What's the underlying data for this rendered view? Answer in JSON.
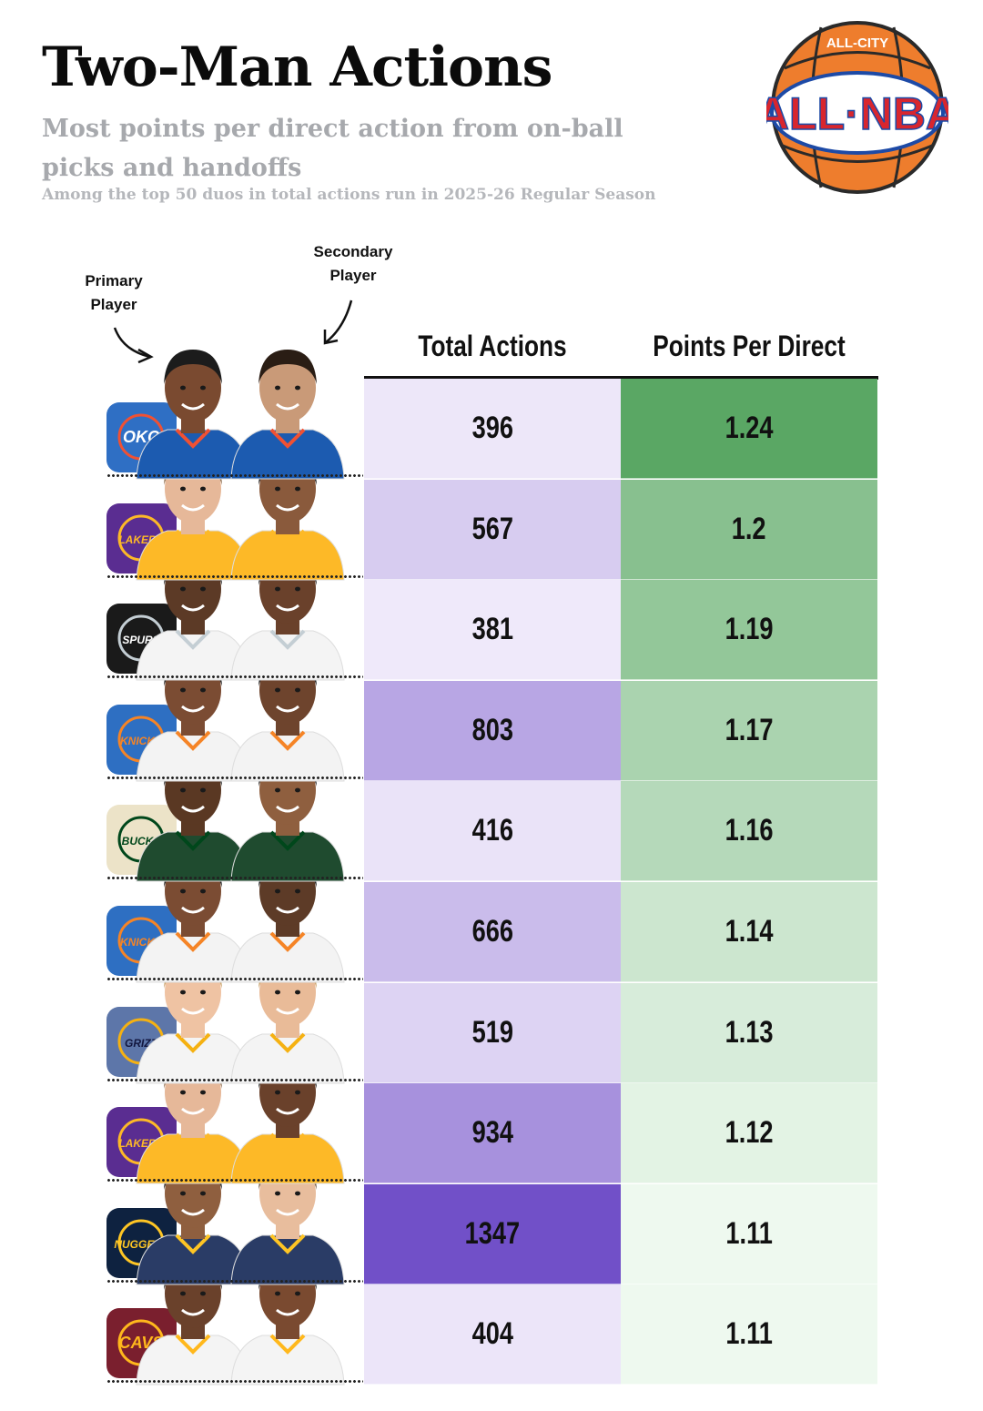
{
  "header": {
    "title": "Two-Man Actions",
    "subtitle": "Most points per direct action from on-ball picks and handoffs",
    "note": "Among the top 50 duos in total actions run in 2025-26 Regular Season"
  },
  "brand": {
    "top_text": "ALL-CITY",
    "main_text": "ALL·NBA",
    "ball_color": "#ee7d2d",
    "blue": "#1d4aa6",
    "red": "#d8262e"
  },
  "annotations": {
    "primary": "Primary Player",
    "secondary": "Secondary Player"
  },
  "colors": {
    "actions_low": "#efe9fa",
    "actions_high": "#7150c8",
    "ppd_low": "#eef9ef",
    "ppd_high": "#5aa764"
  },
  "chart_data": {
    "type": "table",
    "columns": [
      "Total Actions",
      "Points Per Direct"
    ],
    "rows": [
      {
        "team": "OKC",
        "team_icon": "okc-thunder-logo-icon",
        "total_actions": 396,
        "points_per_direct": 1.24,
        "actions_label": "396",
        "ppd_label": "1.24"
      },
      {
        "team": "LAL",
        "team_icon": "lakers-logo-icon",
        "total_actions": 567,
        "points_per_direct": 1.2,
        "actions_label": "567",
        "ppd_label": "1.2"
      },
      {
        "team": "SAS",
        "team_icon": "spurs-logo-icon",
        "total_actions": 381,
        "points_per_direct": 1.19,
        "actions_label": "381",
        "ppd_label": "1.19"
      },
      {
        "team": "NYK",
        "team_icon": "knicks-logo-icon",
        "total_actions": 803,
        "points_per_direct": 1.17,
        "actions_label": "803",
        "ppd_label": "1.17"
      },
      {
        "team": "MIL",
        "team_icon": "bucks-logo-icon",
        "total_actions": 416,
        "points_per_direct": 1.16,
        "actions_label": "416",
        "ppd_label": "1.16"
      },
      {
        "team": "NYK",
        "team_icon": "knicks-logo-icon",
        "total_actions": 666,
        "points_per_direct": 1.14,
        "actions_label": "666",
        "ppd_label": "1.14"
      },
      {
        "team": "MEM",
        "team_icon": "grizzlies-logo-icon",
        "total_actions": 519,
        "points_per_direct": 1.13,
        "actions_label": "519",
        "ppd_label": "1.13"
      },
      {
        "team": "LAL",
        "team_icon": "lakers-logo-icon",
        "total_actions": 934,
        "points_per_direct": 1.12,
        "actions_label": "934",
        "ppd_label": "1.12"
      },
      {
        "team": "DEN",
        "team_icon": "nuggets-logo-icon",
        "total_actions": 1347,
        "points_per_direct": 1.11,
        "actions_label": "1347",
        "ppd_label": "1.11"
      },
      {
        "team": "CLE",
        "team_icon": "cavaliers-logo-icon",
        "total_actions": 404,
        "points_per_direct": 1.11,
        "actions_label": "404",
        "ppd_label": "1.11"
      }
    ],
    "ranges": {
      "total_actions": [
        381,
        1347
      ],
      "points_per_direct": [
        1.11,
        1.24
      ]
    }
  },
  "team_styles": {
    "OKC": {
      "bg": "#2f6fc4",
      "fg": "#ffffff",
      "accent": "#f05133",
      "jersey": "#1c5bb0",
      "text": "OKC"
    },
    "LAL": {
      "bg": "#5a2d91",
      "fg": "#fdb927",
      "accent": "#fdb927",
      "jersey": "#fdb927",
      "text": "LAKERS"
    },
    "SAS": {
      "bg": "#1a1a1a",
      "fg": "#ffffff",
      "accent": "#c4ced4",
      "jersey": "#f4f4f4",
      "text": "SPURS"
    },
    "NYK": {
      "bg": "#2e6fc2",
      "fg": "#f58426",
      "accent": "#f58426",
      "jersey": "#f3f3f3",
      "text": "KNICKS"
    },
    "MIL": {
      "bg": "#ece3c8",
      "fg": "#00471b",
      "accent": "#00471b",
      "jersey": "#1f4b2f",
      "text": "BUCKS"
    },
    "MEM": {
      "bg": "#5d76a9",
      "fg": "#12173f",
      "accent": "#f5b112",
      "jersey": "#f4f4f4",
      "text": "GRIZZ"
    },
    "DEN": {
      "bg": "#0e2240",
      "fg": "#fec524",
      "accent": "#fec524",
      "jersey": "#2a3c66",
      "text": "NUGGETS"
    },
    "CLE": {
      "bg": "#7a1f2e",
      "fg": "#ffb81c",
      "accent": "#ffb81c",
      "jersey": "#f4f4f4",
      "text": "CAVS"
    }
  }
}
